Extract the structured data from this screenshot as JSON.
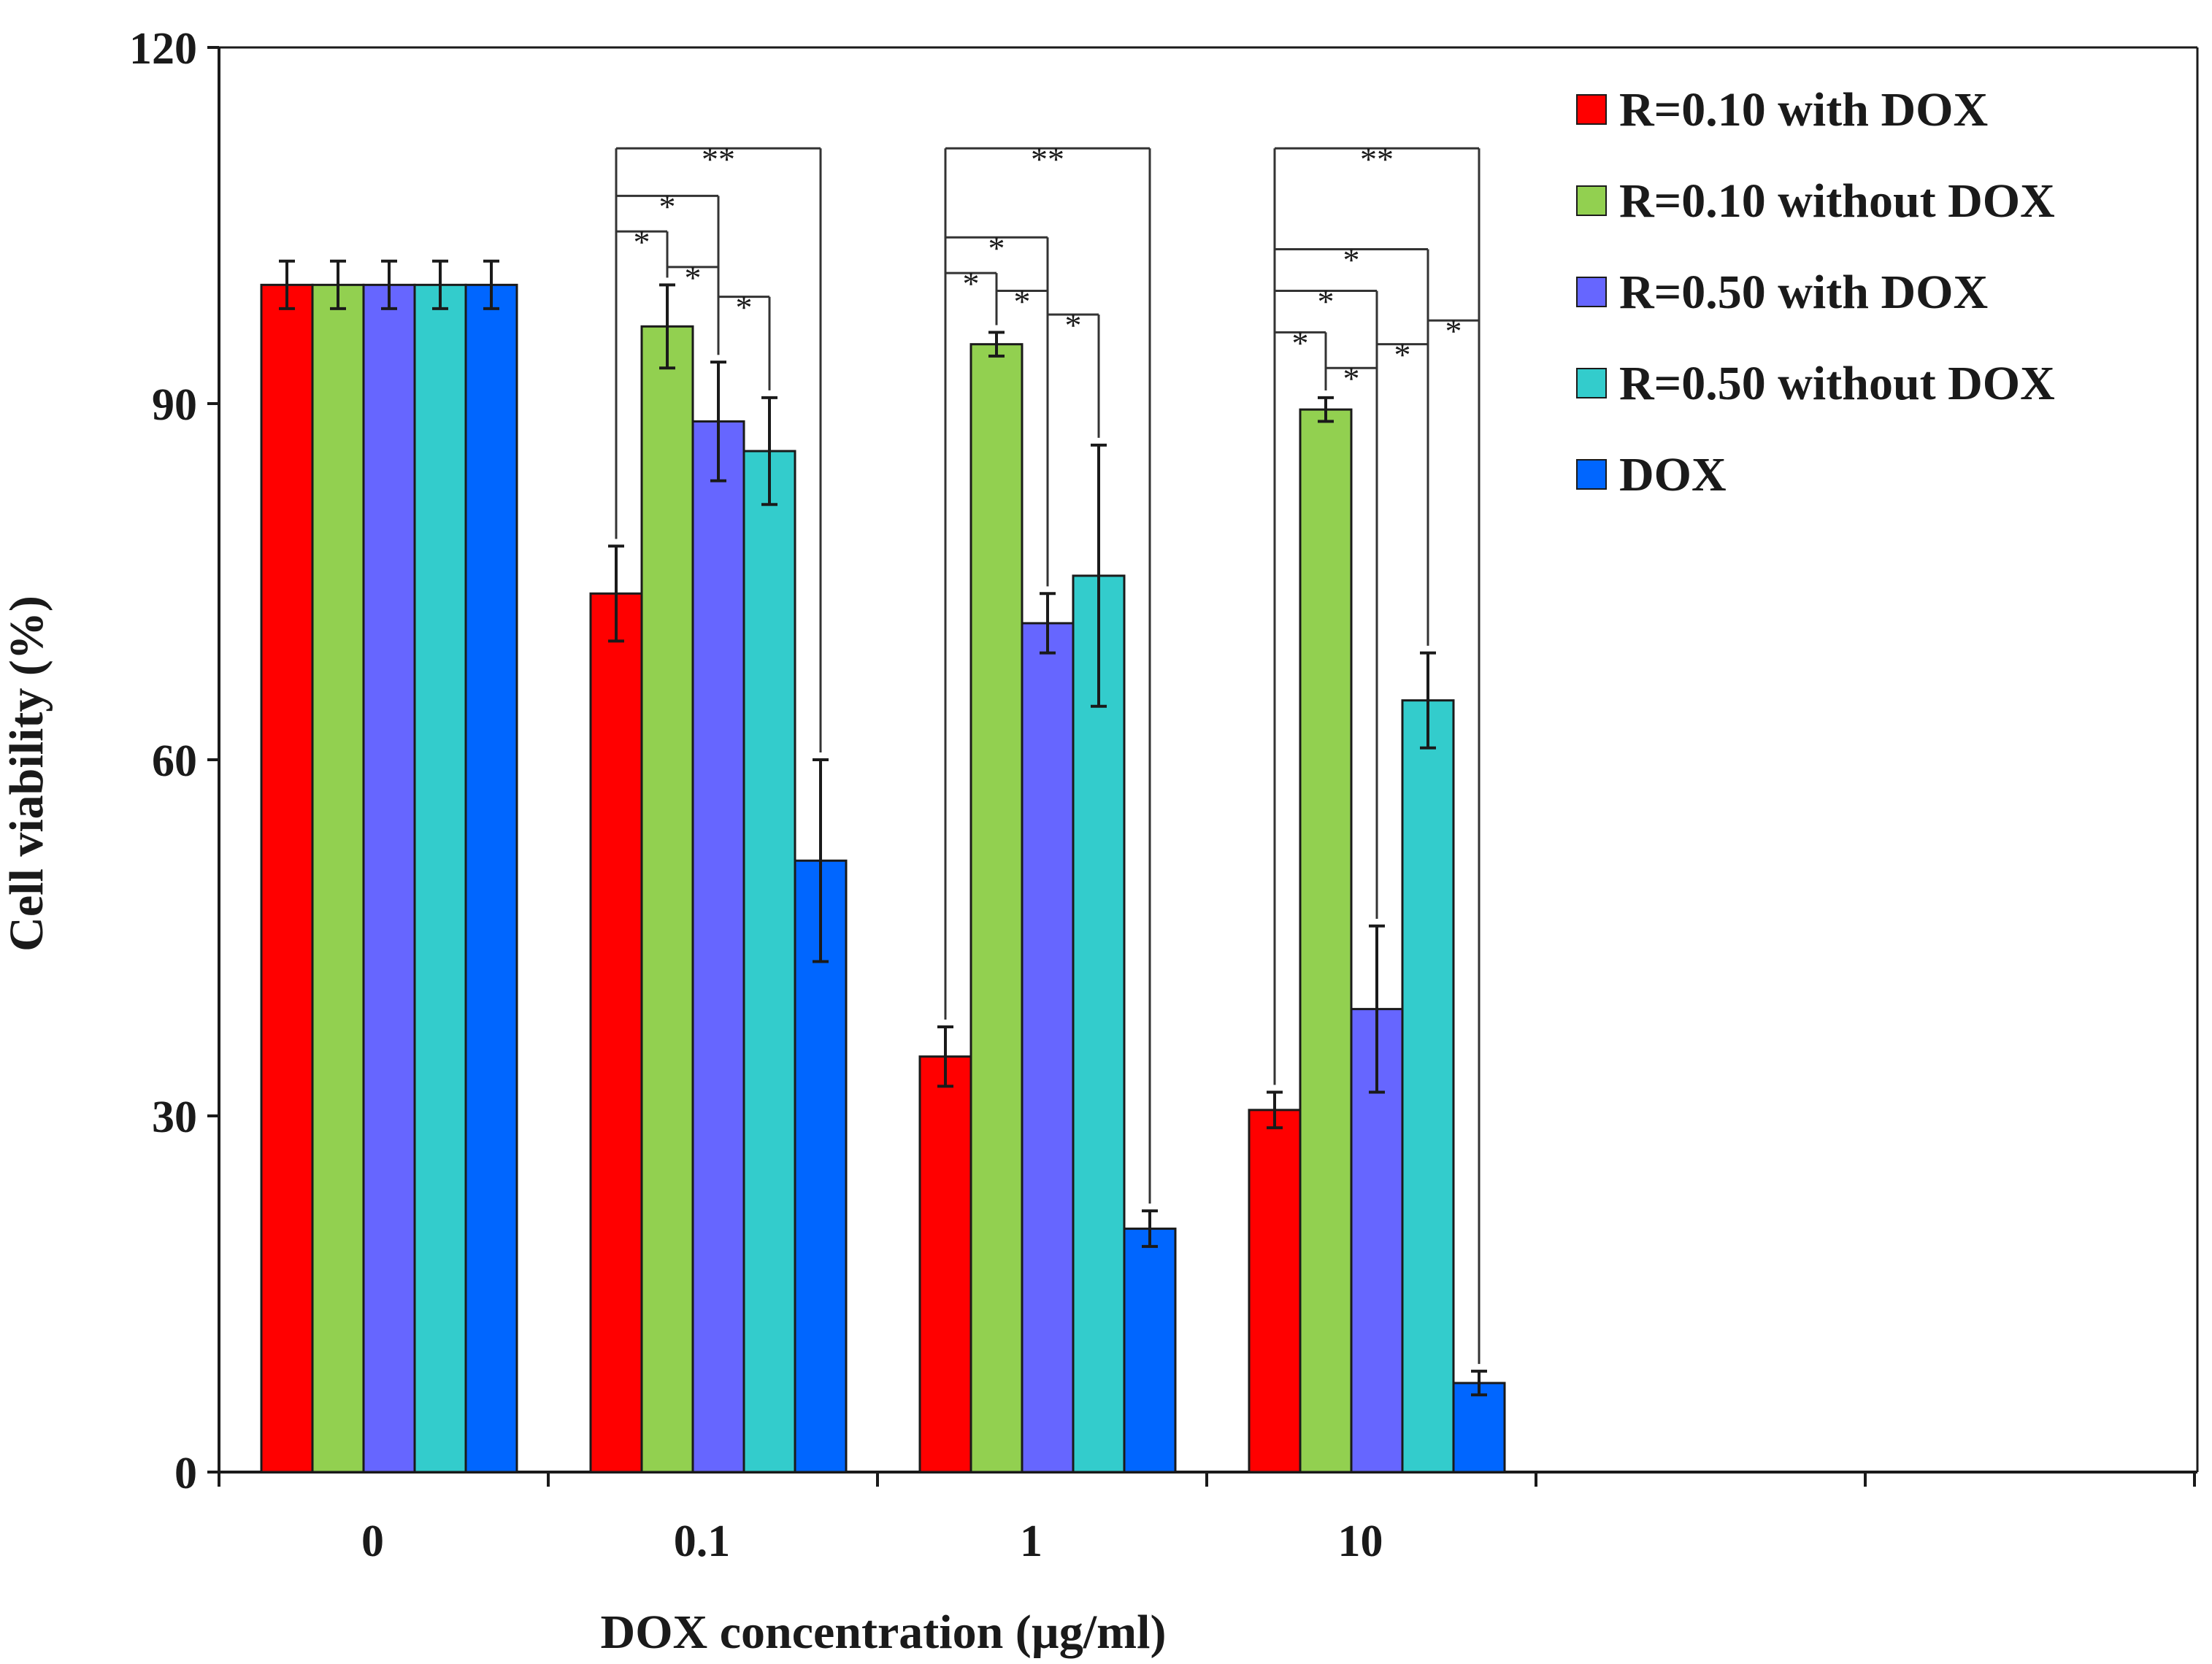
{
  "chart_data": {
    "type": "bar",
    "title": "",
    "xlabel": "DOX concentration (µg/ml)",
    "ylabel": "Cell viability (%)",
    "ylim": [
      0,
      120
    ],
    "yticks": [
      "0",
      "30",
      "60",
      "90",
      "120"
    ],
    "categories": [
      "0",
      "0.1",
      "1",
      "10"
    ],
    "grid": false,
    "legend_position": "top-right",
    "series": [
      {
        "name": "R=0.10 with DOX",
        "color": "#ff0000",
        "values": [
          100,
          74,
          35,
          30.5
        ],
        "errors": [
          2,
          4,
          2.5,
          1.5
        ]
      },
      {
        "name": "R=0.10 without DOX",
        "color": "#92d050",
        "values": [
          100,
          96.5,
          95,
          89.5
        ],
        "errors": [
          2,
          3.5,
          1,
          1
        ]
      },
      {
        "name": "R=0.50 with DOX",
        "color": "#6666ff",
        "values": [
          100,
          88.5,
          71.5,
          39
        ],
        "errors": [
          2,
          5,
          2.5,
          7
        ]
      },
      {
        "name": "R=0.50 without DOX",
        "color": "#33cccc",
        "values": [
          100,
          86,
          75.5,
          65
        ],
        "errors": [
          2,
          4.5,
          11,
          4
        ]
      },
      {
        "name": "DOX",
        "color": "#0066ff",
        "values": [
          100,
          51.5,
          20.5,
          7.5
        ],
        "errors": [
          2,
          8.5,
          1.5,
          1
        ]
      }
    ],
    "significance": [
      {
        "category": "0.1",
        "from": 0,
        "to": 4,
        "y": 111.5,
        "label": "**"
      },
      {
        "category": "0.1",
        "from": 0,
        "to": 2,
        "y": 107.5,
        "label": "*"
      },
      {
        "category": "0.1",
        "from": 0,
        "to": 1,
        "y": 104.5,
        "label": "*"
      },
      {
        "category": "0.1",
        "from": 1,
        "to": 2,
        "y": 101.5,
        "label": "*"
      },
      {
        "category": "0.1",
        "from": 2,
        "to": 3,
        "y": 99,
        "label": "*"
      },
      {
        "category": "1",
        "from": 0,
        "to": 4,
        "y": 111.5,
        "label": "**"
      },
      {
        "category": "1",
        "from": 0,
        "to": 2,
        "y": 104,
        "label": "*"
      },
      {
        "category": "1",
        "from": 0,
        "to": 1,
        "y": 101,
        "label": "*"
      },
      {
        "category": "1",
        "from": 1,
        "to": 2,
        "y": 99.5,
        "label": "*"
      },
      {
        "category": "1",
        "from": 2,
        "to": 3,
        "y": 97.5,
        "label": "*"
      },
      {
        "category": "10",
        "from": 0,
        "to": 4,
        "y": 111.5,
        "label": "**"
      },
      {
        "category": "10",
        "from": 0,
        "to": 3,
        "y": 103,
        "label": "*"
      },
      {
        "category": "10",
        "from": 0,
        "to": 2,
        "y": 99.5,
        "label": "*"
      },
      {
        "category": "10",
        "from": 0,
        "to": 1,
        "y": 96,
        "label": "*"
      },
      {
        "category": "10",
        "from": 1,
        "to": 2,
        "y": 93,
        "label": "*"
      },
      {
        "category": "10",
        "from": 2,
        "to": 3,
        "y": 95,
        "label": "*"
      },
      {
        "category": "10",
        "from": 3,
        "to": 4,
        "y": 97,
        "label": "*"
      }
    ]
  }
}
